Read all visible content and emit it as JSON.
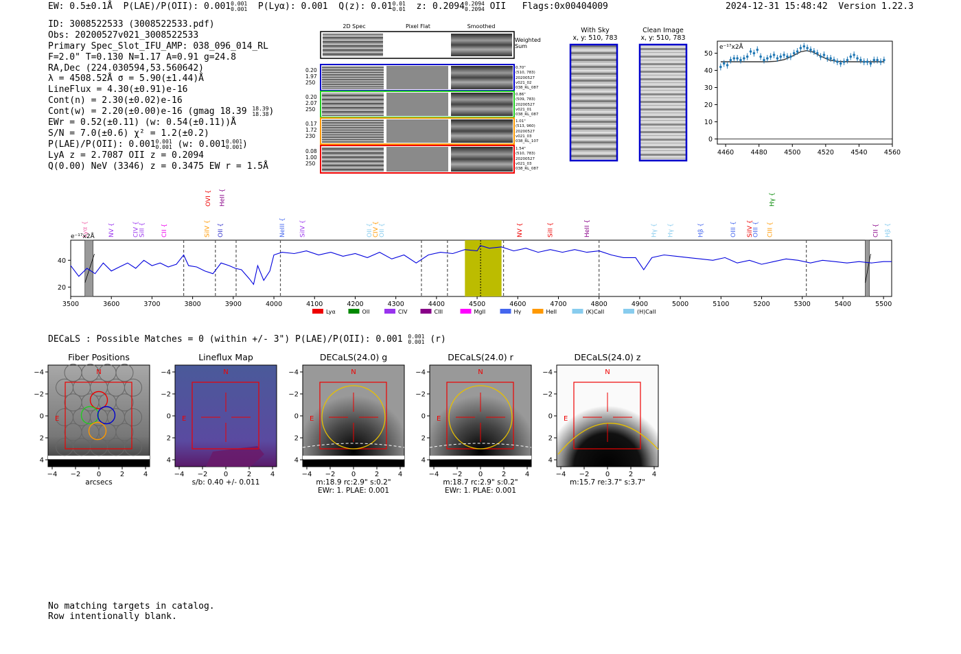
{
  "header": {
    "ew": "EW: 0.5±0.1Å",
    "plae_label": "P(LAE)/P(OII): 0.001",
    "plae_hi": "0.001",
    "plae_lo": "0.001",
    "plya": "P(Lyα): 0.001",
    "qz_label": "Q(z): 0.01",
    "qz_hi": "0.01",
    "qz_lo": "0.01",
    "z_label": "z: 0.2094",
    "z_hi": "0.2094",
    "z_lo": "0.2094",
    "z_line": "OII",
    "flags": "Flags:0x00404009",
    "datetime": "2024-12-31 15:48:42",
    "version": "Version 1.22.3"
  },
  "info": {
    "id": "ID: 3008522533 (3008522533.pdf)",
    "obs": "Obs: 20200527v021_3008522533",
    "primary": "Primary Spec_Slot_IFU_AMP: 038_096_014_RL",
    "fparams": "F=2.0\"  T=0.130  N=1.17  A=0.91  g=24.8",
    "radec": "RA,Dec (224.030594,53.560642)",
    "lambda": "λ = 4508.52Å  σ = 5.90(±1.44)Å",
    "lineflux": "LineFlux = 4.30(±0.91)e-16",
    "contn": "Cont(n) = 2.30(±0.02)e-16",
    "contw": "Cont(w) = 2.20(±0.00)e-16 (gmag 18.39",
    "contw_hi": "18.39",
    "contw_lo": "18.38",
    "contw_end": ")",
    "ewr": "EWr = 0.52(±0.11) (w: 0.54(±0.11))Å",
    "sn": "S/N = 7.0(±0.6)  χ² = 1.2(±0.2)",
    "plae": "P(LAE)/P(OII): 0.001",
    "plae_hi": "0.001",
    "plae_lo": "0.001",
    "plae_w": "(w: 0.001",
    "plae_w_hi": "0.001",
    "plae_w_lo": "0.001",
    "plae_w_end": ")",
    "lya": "LyA z = 2.7087  OII z = 0.2094",
    "q": "Q(0.00) NeV (3346) z = 0.3475  EW r = 1.5Å"
  },
  "cutouts": {
    "col_2d": "2D Spec",
    "col_flat": "Pixel Flat",
    "col_smooth": "Smoothed",
    "weighted": [
      "Weighted",
      "Sum"
    ],
    "rows": [
      {
        "left": [
          "0.20",
          "1.97",
          "250"
        ],
        "right": [
          "0.70\"",
          "(510, 783)",
          "20200527",
          "v021_02",
          "038_RL_087"
        ],
        "color": "#0000cc"
      },
      {
        "left": [
          "0.20",
          "2.07",
          "250"
        ],
        "right": [
          "0.86\"",
          "(509, 783)",
          "20200527",
          "v021_01",
          "038_RL_087"
        ],
        "color": "#22cc22"
      },
      {
        "left": [
          "0.17",
          "1.72",
          "230"
        ],
        "right": [
          "1.01\"",
          "(513, 960)",
          "20200527",
          "v021_03",
          "038_RL_107"
        ],
        "color": "#ff9900"
      },
      {
        "left": [
          "0.08",
          "1.00",
          "250"
        ],
        "right": [
          "1.54\"",
          "(510, 783)",
          "20200527",
          "v021_03",
          "038_RL_087"
        ],
        "color": "#ee0000"
      }
    ]
  },
  "sky": {
    "with_sky": [
      "With Sky",
      "x, y: 510, 783"
    ],
    "clean": [
      "Clean Image",
      "x, y: 510, 783"
    ]
  },
  "fit_chart": {
    "unit": "e⁻¹⁷x2Å",
    "x_ticks": [
      "4460",
      "4480",
      "4500",
      "4520",
      "4540",
      "4560"
    ],
    "y_ticks": [
      "0",
      "10",
      "20",
      "30",
      "40",
      "50"
    ]
  },
  "full_chart": {
    "unit": "e⁻¹⁷x2Å",
    "x_ticks": [
      "3500",
      "3600",
      "3700",
      "3800",
      "3900",
      "4000",
      "4100",
      "4200",
      "4300",
      "4400",
      "4500",
      "4600",
      "4700",
      "4800",
      "4900",
      "5000",
      "5100",
      "5200",
      "5300",
      "5400",
      "5500"
    ],
    "y_ticks": [
      "20",
      "40"
    ],
    "legend": [
      {
        "name": "Lyα",
        "color": "#ee0000"
      },
      {
        "name": "OII",
        "color": "#008800"
      },
      {
        "name": "CIV",
        "color": "#9933ee"
      },
      {
        "name": "CIII",
        "color": "#880088"
      },
      {
        "name": "MgII",
        "color": "#ff00ff"
      },
      {
        "name": "Hγ",
        "color": "#4466ee"
      },
      {
        "name": "HeII",
        "color": "#ff9900"
      },
      {
        "name": "(K)CaII",
        "color": "#88ccee"
      },
      {
        "name": "(H)CaII",
        "color": "#88ccee"
      }
    ]
  },
  "chart_data": [
    {
      "type": "line",
      "title": "",
      "xlabel": "",
      "ylabel": "e⁻¹⁷x2Å",
      "xlim": [
        4455,
        4560
      ],
      "ylim": [
        -3,
        57
      ],
      "series": [
        {
          "kind": "errorbar",
          "x": [
            4457,
            4459,
            4461,
            4463,
            4465,
            4467,
            4469,
            4471,
            4473,
            4475,
            4477,
            4479,
            4481,
            4483,
            4485,
            4487,
            4489,
            4491,
            4493,
            4495,
            4497,
            4499,
            4501,
            4503,
            4505,
            4507,
            4509,
            4511,
            4513,
            4515,
            4517,
            4519,
            4521,
            4523,
            4525,
            4527,
            4529,
            4531,
            4533,
            4535,
            4537,
            4539,
            4541,
            4543,
            4545,
            4547,
            4549,
            4551,
            4553,
            4555
          ],
          "y": [
            42,
            44,
            43,
            46,
            47,
            47,
            46,
            47,
            48,
            51,
            50,
            52,
            48,
            46,
            47,
            48,
            49,
            47,
            48,
            49,
            48,
            48,
            50,
            51,
            53,
            54,
            53,
            52,
            51,
            50,
            48,
            49,
            47,
            47,
            46,
            45,
            44,
            45,
            46,
            48,
            49,
            47,
            46,
            45,
            45,
            44,
            46,
            46,
            45,
            46
          ],
          "yerr": 2
        },
        {
          "kind": "fit",
          "x": [
            4457,
            4465,
            4475,
            4485,
            4490,
            4495,
            4500,
            4505,
            4508.5,
            4512,
            4517,
            4522,
            4527,
            4535,
            4545,
            4555
          ],
          "y": [
            45,
            45,
            45,
            45,
            45.3,
            46.2,
            48.3,
            50.8,
            51.5,
            50.8,
            48.3,
            46,
            45.2,
            45,
            45,
            45
          ]
        }
      ]
    },
    {
      "type": "line",
      "title": "",
      "xlabel": "",
      "ylabel": "e⁻¹⁷x2Å",
      "xlim": [
        3500,
        5520
      ],
      "ylim": [
        13,
        55
      ],
      "highlight_band": [
        4470,
        4560
      ],
      "line_center": 4508.5,
      "masked": [
        [
          3535,
          3555
        ],
        [
          5455,
          5465
        ]
      ],
      "dashed_lines": [
        3778,
        3856,
        3907,
        4016,
        4363,
        4427,
        4565,
        4800,
        5310
      ],
      "series": [
        {
          "name": "spectrum",
          "x": [
            3500,
            3520,
            3540,
            3560,
            3580,
            3600,
            3620,
            3640,
            3660,
            3680,
            3700,
            3720,
            3740,
            3760,
            3778,
            3790,
            3810,
            3830,
            3850,
            3870,
            3890,
            3905,
            3920,
            3940,
            3950,
            3960,
            3975,
            3990,
            4000,
            4020,
            4050,
            4080,
            4110,
            4140,
            4170,
            4200,
            4230,
            4260,
            4290,
            4320,
            4350,
            4380,
            4410,
            4440,
            4470,
            4500,
            4508,
            4530,
            4560,
            4590,
            4620,
            4650,
            4680,
            4710,
            4740,
            4770,
            4800,
            4830,
            4860,
            4890,
            4910,
            4930,
            4960,
            4990,
            5020,
            5050,
            5080,
            5110,
            5140,
            5170,
            5200,
            5230,
            5260,
            5290,
            5320,
            5350,
            5380,
            5410,
            5440,
            5470,
            5500,
            5520
          ],
          "y": [
            36,
            28,
            34,
            30,
            38,
            32,
            35,
            38,
            34,
            40,
            36,
            38,
            35,
            37,
            44,
            36,
            35,
            32,
            30,
            38,
            36,
            34,
            33,
            26,
            22,
            36,
            25,
            32,
            44,
            46,
            45,
            47,
            44,
            46,
            43,
            45,
            42,
            46,
            41,
            44,
            38,
            44,
            46,
            45,
            48,
            47,
            51,
            49,
            50,
            47,
            49,
            46,
            48,
            46,
            48,
            46,
            47,
            44,
            42,
            42,
            33,
            42,
            44,
            43,
            42,
            41,
            40,
            42,
            38,
            40,
            37,
            39,
            41,
            40,
            38,
            40,
            39,
            38,
            39,
            38,
            39,
            39
          ]
        }
      ],
      "line_markers": [
        {
          "name": "Lyα",
          "x": 3535,
          "color": "#ee66aa"
        },
        {
          "name": "NV",
          "x": 3600,
          "color": "#9933ee"
        },
        {
          "name": "CIV",
          "x": 3660,
          "color": "#9933ee"
        },
        {
          "name": "SiII",
          "x": 3675,
          "color": "#9933ee"
        },
        {
          "name": "CII",
          "x": 3730,
          "color": "#ee00ee"
        },
        {
          "name": "SiIV",
          "x": 3835,
          "color": "#ff9900"
        },
        {
          "name": "OVI",
          "x": 3838,
          "color": "#ee0000"
        },
        {
          "name": "OII",
          "x": 3868,
          "color": "#3333cc"
        },
        {
          "name": "HeII",
          "x": 3872,
          "color": "#880088"
        },
        {
          "name": "NeIII",
          "x": 4020,
          "color": "#4466ee"
        },
        {
          "name": "SiIV",
          "x": 4070,
          "color": "#9933ee"
        },
        {
          "name": "OII",
          "x": 4235,
          "color": "#88ccee"
        },
        {
          "name": "CIV",
          "x": 4250,
          "color": "#ff9900"
        },
        {
          "name": "OII",
          "x": 4265,
          "color": "#88ccee"
        },
        {
          "name": "NV",
          "x": 4605,
          "color": "#ee0000"
        },
        {
          "name": "SiII",
          "x": 4680,
          "color": "#ee0000"
        },
        {
          "name": "HeII",
          "x": 4770,
          "color": "#880088"
        },
        {
          "name": "Hγ",
          "x": 4935,
          "color": "#88ccee"
        },
        {
          "name": "Hγ",
          "x": 4975,
          "color": "#88ccee"
        },
        {
          "name": "Hβ",
          "x": 5050,
          "color": "#4466ee"
        },
        {
          "name": "OIII",
          "x": 5130,
          "color": "#4466ee"
        },
        {
          "name": "SiIV",
          "x": 5170,
          "color": "#ee0000"
        },
        {
          "name": "OIII",
          "x": 5185,
          "color": "#4466ee"
        },
        {
          "name": "CIII",
          "x": 5220,
          "color": "#ff9900"
        },
        {
          "name": "Hγ",
          "x": 5225,
          "color": "#008800"
        },
        {
          "name": "CII",
          "x": 5480,
          "color": "#880088"
        },
        {
          "name": "Hβ",
          "x": 5510,
          "color": "#88ccee"
        }
      ]
    }
  ],
  "decals": {
    "line": "DECaLS : Possible Matches = 0 (within +/- 3\")  P(LAE)/P(OII): 0.001",
    "hi": "0.001",
    "lo": "0.001",
    "band": "(r)"
  },
  "panels": [
    {
      "title": "Fiber Positions",
      "caption": [
        "arcsecs"
      ]
    },
    {
      "title": "Lineflux Map",
      "caption": [
        "s/b: 0.40 +/- 0.011"
      ]
    },
    {
      "title": "DECaLS(24.0) g",
      "caption": [
        "m:18.9 rc:2.9\"  s:0.2\"",
        "EWr: 1. PLAE: 0.001"
      ]
    },
    {
      "title": "DECaLS(24.0) r",
      "caption": [
        "m:18.7 rc:2.9\"  s:0.2\"",
        "EWr: 1. PLAE: 0.001"
      ]
    },
    {
      "title": "DECaLS(24.0) z",
      "caption": [
        "m:15.7  re:3.7\"  s:3.7\""
      ]
    }
  ],
  "panel_axis": {
    "ticks": [
      "−4",
      "−2",
      "0",
      "2",
      "4"
    ],
    "north": "N",
    "east": "E"
  },
  "footer": {
    "line1": "No matching targets in catalog.",
    "line2": "Row intentionally blank."
  }
}
